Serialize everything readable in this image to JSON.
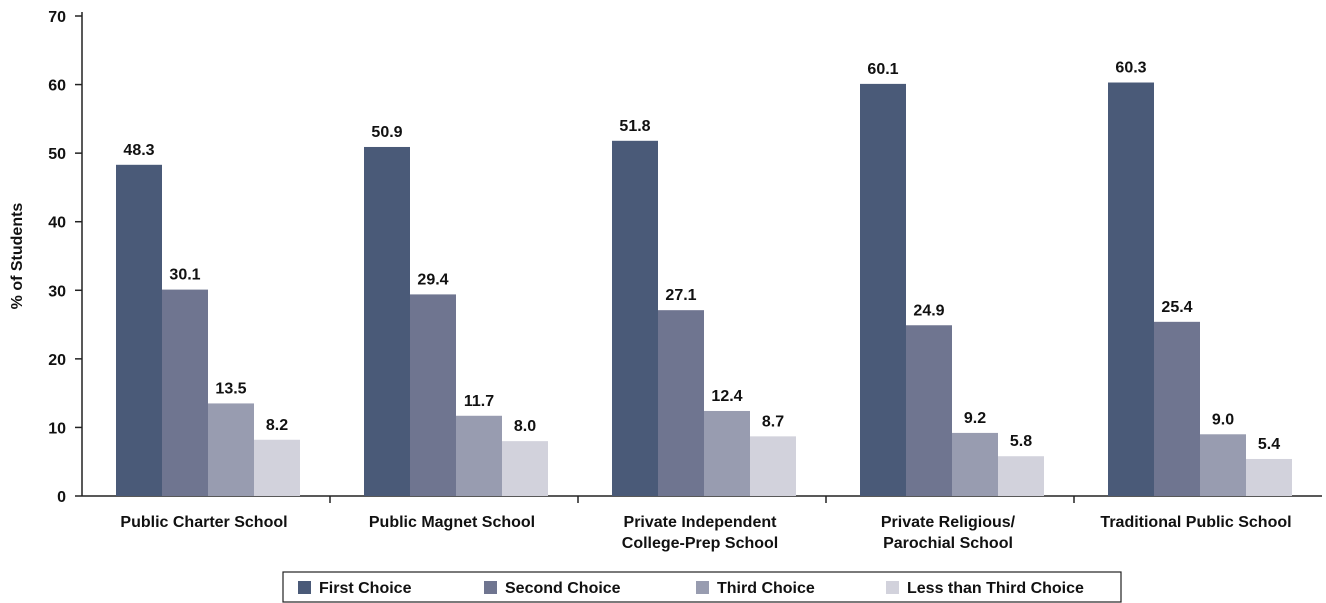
{
  "chart_data": {
    "type": "bar",
    "ylabel": "% of Students",
    "ylim": [
      0,
      70
    ],
    "yticks": [
      0,
      10,
      20,
      30,
      40,
      50,
      60,
      70
    ],
    "grid": false,
    "legend_position": "bottom",
    "categories": [
      [
        "Public Charter School"
      ],
      [
        "Public Magnet School"
      ],
      [
        "Private Independent",
        "College-Prep School"
      ],
      [
        "Private Religious/",
        "Parochial School"
      ],
      [
        "Traditional Public School"
      ]
    ],
    "series": [
      {
        "name": "First Choice",
        "color": "#4a5a78",
        "values": [
          48.3,
          50.9,
          51.8,
          60.1,
          60.3
        ],
        "labels": [
          "48.3",
          "50.9",
          "51.8",
          "60.1",
          "60.3"
        ]
      },
      {
        "name": "Second Choice",
        "color": "#6f7590",
        "values": [
          30.1,
          29.4,
          27.1,
          24.9,
          25.4
        ],
        "labels": [
          "30.1",
          "29.4",
          "27.1",
          "24.9",
          "25.4"
        ]
      },
      {
        "name": "Third Choice",
        "color": "#989cb0",
        "values": [
          13.5,
          11.7,
          12.4,
          9.2,
          9.0
        ],
        "labels": [
          "13.5",
          "11.7",
          "12.4",
          "9.2",
          "9.0"
        ]
      },
      {
        "name": "Less than Third Choice",
        "color": "#d2d2dc",
        "values": [
          8.2,
          8.0,
          8.7,
          5.8,
          5.4
        ],
        "labels": [
          "8.2",
          "8.0",
          "8.7",
          "5.8",
          "5.4"
        ]
      }
    ]
  }
}
